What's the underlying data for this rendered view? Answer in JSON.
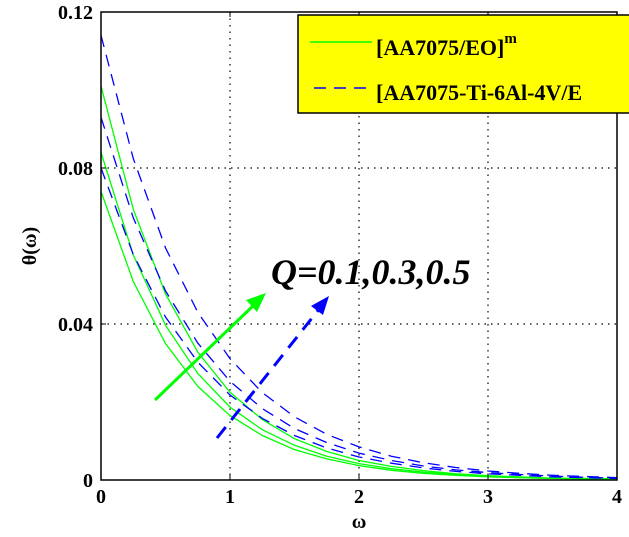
{
  "chart_data": {
    "type": "line",
    "title": "",
    "xlabel": "ω",
    "ylabel": "θ(ω)",
    "xlim": [
      0,
      4
    ],
    "ylim": [
      0,
      0.12
    ],
    "xticks": [
      "0",
      "1",
      "2",
      "3",
      "4"
    ],
    "yticks": [
      "0",
      "0.04",
      "0.08",
      "0.12"
    ],
    "grid": "dotted",
    "legend": {
      "placement": "top-right",
      "background": "#ffff00",
      "entries": [
        {
          "label": "[AA7075/EO]",
          "sup": "m",
          "style": "solid",
          "color": "#00ff00"
        },
        {
          "label": "[AA7075-Ti-6Al-4V/E",
          "style": "dashed",
          "color": "#0000ff"
        }
      ]
    },
    "annotation": "Q=0.1,0.3,0.5",
    "x": [
      0,
      0.25,
      0.5,
      0.75,
      1,
      1.25,
      1.5,
      1.75,
      2,
      2.25,
      2.5,
      2.75,
      3,
      3.25,
      3.5,
      3.75,
      4
    ],
    "series": [
      {
        "group": "[AA7075/EO]m",
        "Q": 0.1,
        "style": "solid",
        "color": "#00ff00",
        "values": [
          0.074,
          0.0509,
          0.035,
          0.024,
          0.0165,
          0.0114,
          0.0078,
          0.0054,
          0.0037,
          0.0025,
          0.0017,
          0.0012,
          0.0008,
          0.0006,
          0.0004,
          0.0003,
          0.0002
        ]
      },
      {
        "group": "[AA7075/EO]m",
        "Q": 0.3,
        "style": "solid",
        "color": "#00ff00",
        "values": [
          0.084,
          0.0577,
          0.0397,
          0.0273,
          0.0187,
          0.0129,
          0.0089,
          0.0061,
          0.0042,
          0.0029,
          0.002,
          0.0014,
          0.0009,
          0.0006,
          0.0004,
          0.0003,
          0.0002
        ]
      },
      {
        "group": "[AA7075/EO]m",
        "Q": 0.5,
        "style": "solid",
        "color": "#00ff00",
        "values": [
          0.101,
          0.0694,
          0.0477,
          0.0328,
          0.0225,
          0.0155,
          0.0106,
          0.0073,
          0.005,
          0.0035,
          0.0024,
          0.0016,
          0.0011,
          0.0008,
          0.0005,
          0.0004,
          0.0003
        ]
      },
      {
        "group": "[AA7075-Ti-6Al-4V/E",
        "Q": 0.1,
        "style": "dashed",
        "color": "#0000ff",
        "values": [
          0.08,
          0.0578,
          0.0418,
          0.0302,
          0.0218,
          0.0158,
          0.0114,
          0.0082,
          0.0059,
          0.0043,
          0.0031,
          0.0022,
          0.0016,
          0.0012,
          0.0008,
          0.0006,
          0.0004
        ]
      },
      {
        "group": "[AA7075-Ti-6Al-4V/E",
        "Q": 0.3,
        "style": "dashed",
        "color": "#0000ff",
        "values": [
          0.093,
          0.0672,
          0.0485,
          0.0351,
          0.0253,
          0.0183,
          0.0132,
          0.0096,
          0.0069,
          0.005,
          0.0036,
          0.0026,
          0.0019,
          0.0014,
          0.001,
          0.0007,
          0.0005
        ]
      },
      {
        "group": "[AA7075-Ti-6Al-4V/E",
        "Q": 0.5,
        "style": "dashed",
        "color": "#0000ff",
        "values": [
          0.114,
          0.0824,
          0.0595,
          0.043,
          0.0311,
          0.0224,
          0.0162,
          0.0117,
          0.0085,
          0.0061,
          0.0044,
          0.0032,
          0.0023,
          0.0017,
          0.0012,
          0.0009,
          0.0006
        ]
      }
    ]
  }
}
